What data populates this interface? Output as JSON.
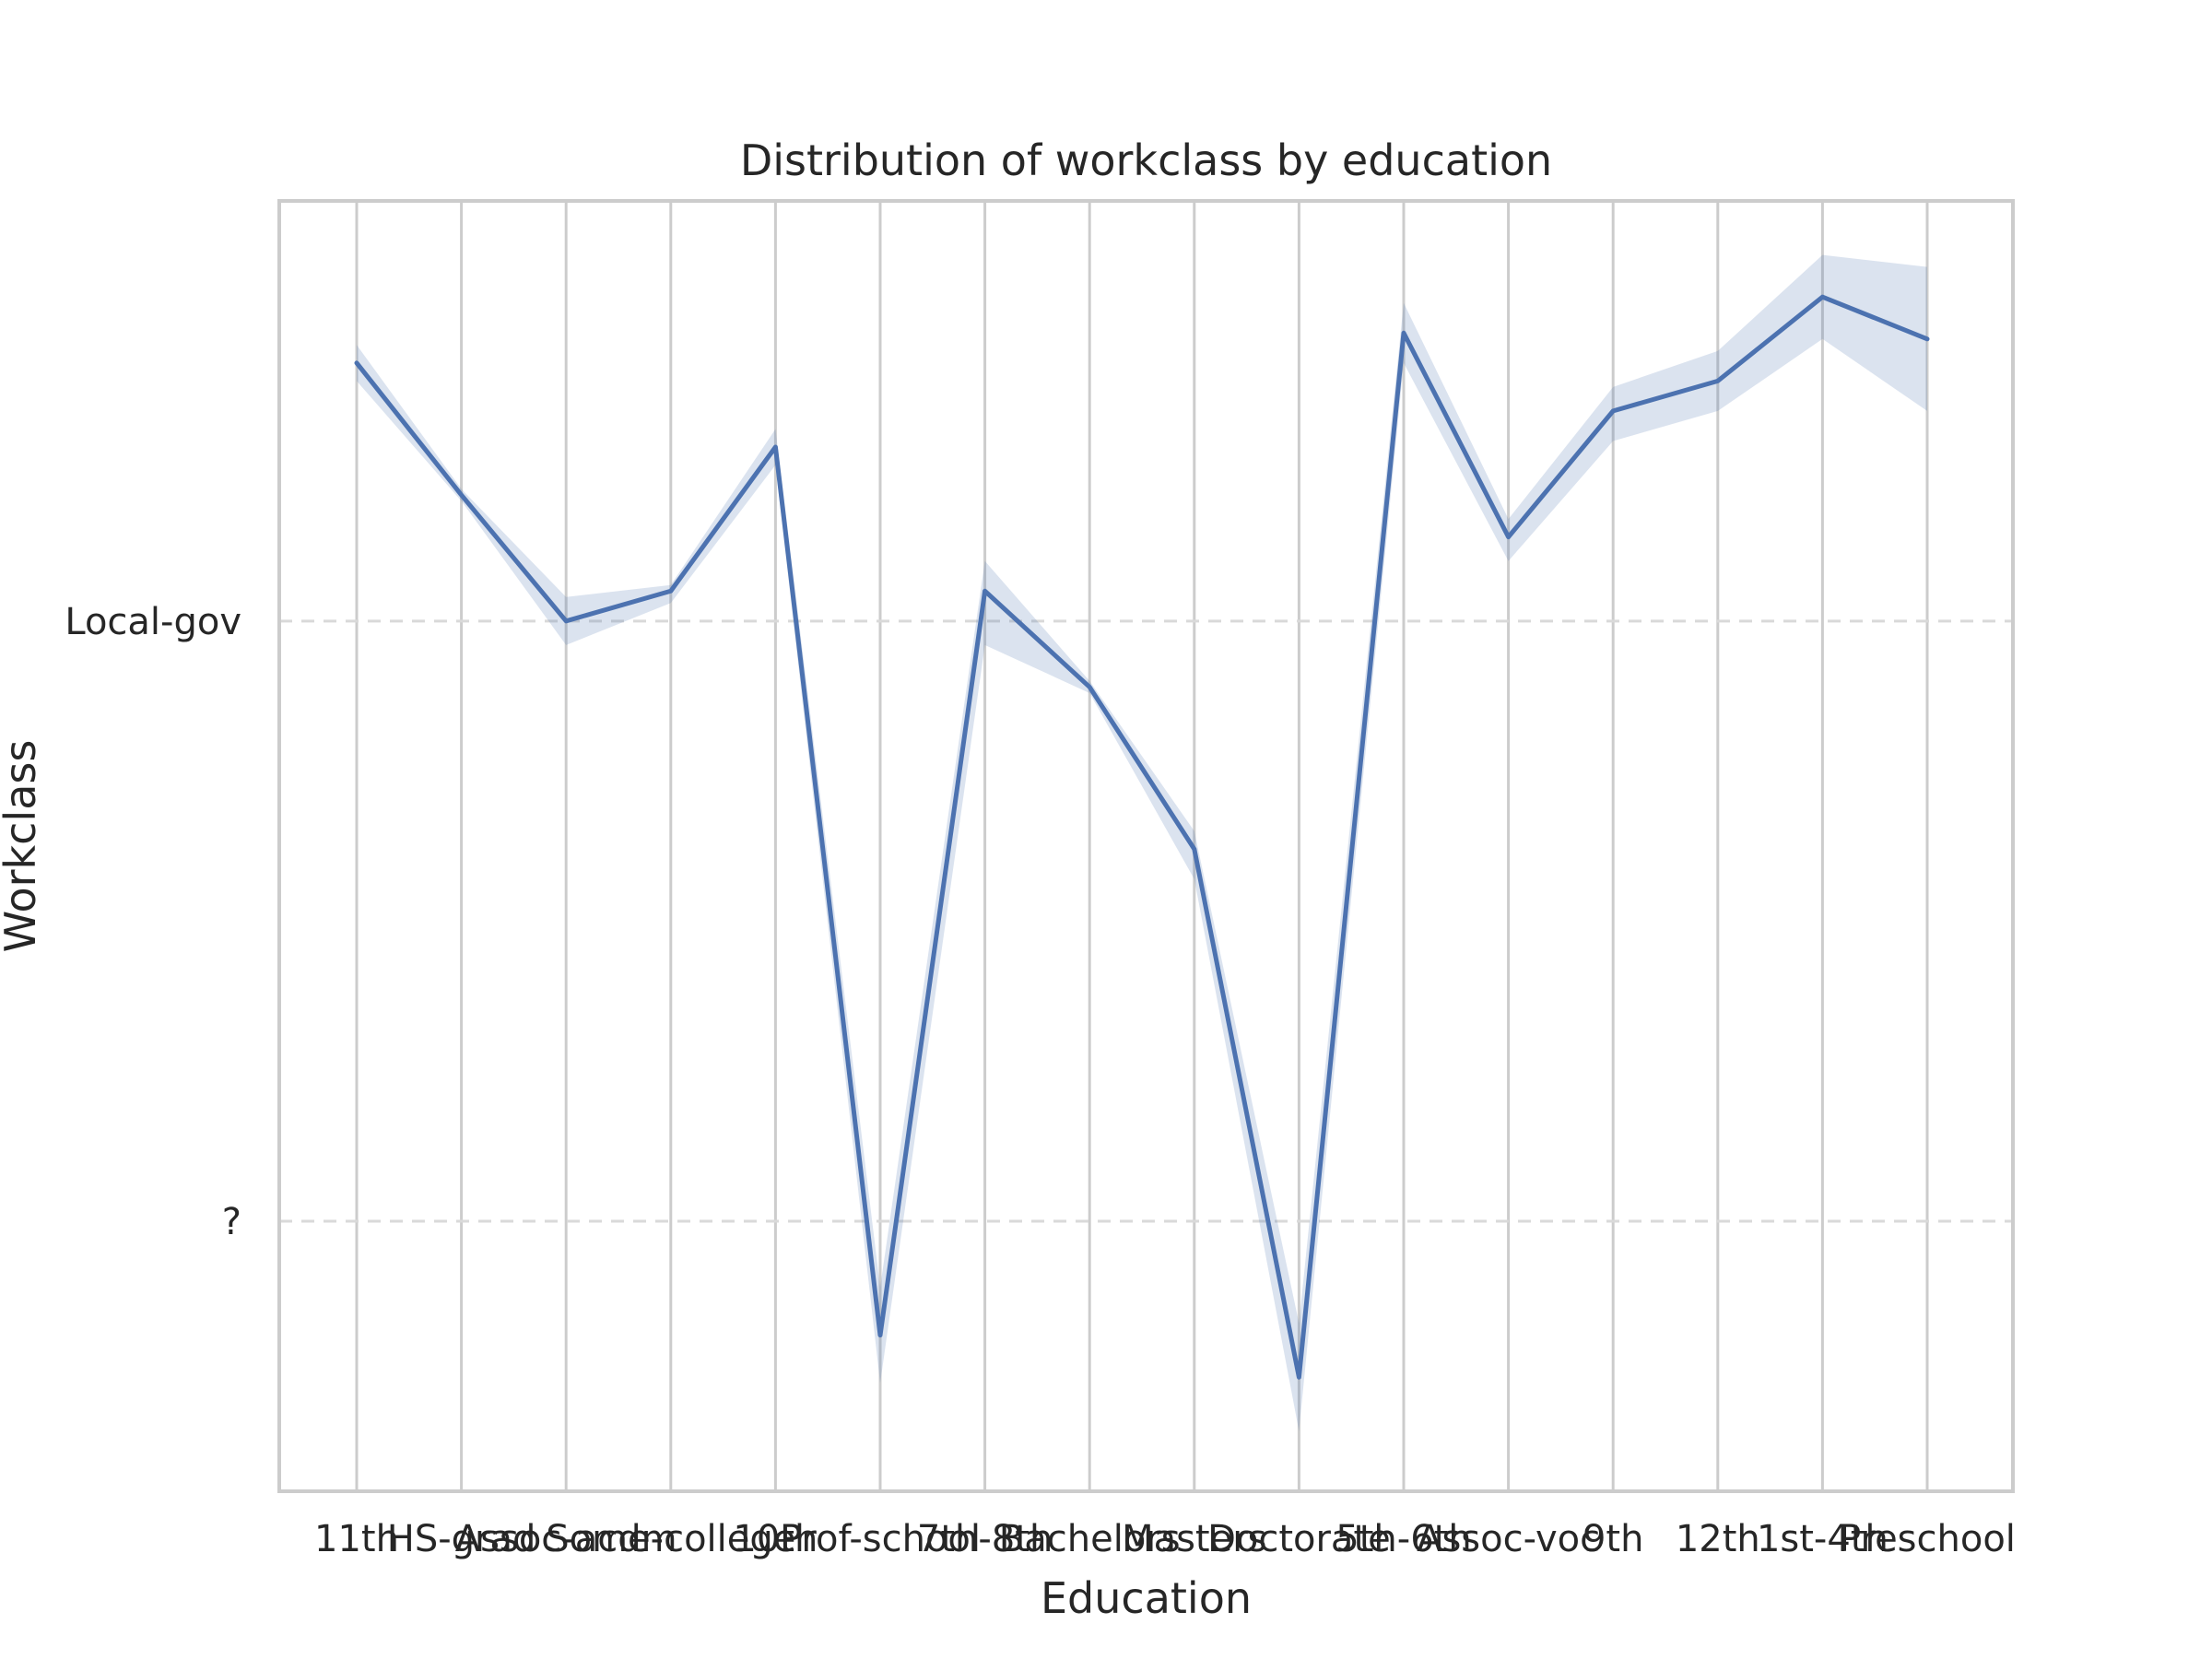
{
  "chart_data": {
    "type": "line",
    "title": "Distribution of workclass by education",
    "xlabel": "Education",
    "ylabel": "Workclass",
    "categories": [
      "11th",
      "HS-grad",
      "Assoc-acdm",
      "Some-college",
      "10th",
      "Prof-school",
      "7th-8th",
      "Bachelors",
      "Masters",
      "Doctorate",
      "5th-6th",
      "Assoc-voc",
      "9th",
      "12th",
      "1st-4th",
      "Preschool"
    ],
    "y_ticks": [
      {
        "label": "?",
        "value": 0
      },
      {
        "label": "Local-gov",
        "value": 1
      }
    ],
    "ylim": [
      -0.45,
      1.7
    ],
    "series": [
      {
        "values": [
          1.43,
          1.21,
          1.0,
          1.05,
          1.29,
          -0.19,
          1.05,
          0.89,
          0.62,
          -0.26,
          1.48,
          1.14,
          1.35,
          1.4,
          1.54,
          1.47
        ],
        "ci_lower": [
          1.4,
          1.2,
          0.96,
          1.03,
          1.26,
          -0.27,
          0.96,
          0.88,
          0.57,
          -0.35,
          1.43,
          1.1,
          1.3,
          1.35,
          1.47,
          1.35
        ],
        "ci_upper": [
          1.46,
          1.22,
          1.04,
          1.06,
          1.32,
          -0.11,
          1.1,
          0.9,
          0.65,
          -0.17,
          1.53,
          1.17,
          1.39,
          1.45,
          1.61,
          1.59
        ]
      }
    ],
    "grid": {
      "vertical": true,
      "horizontal": true,
      "horizontal_style": "dashed"
    },
    "colors": {
      "line": "#4c72b0",
      "band": "#4c72b0",
      "grid": "#cccccc",
      "frame": "#cccccc",
      "text": "#262626"
    }
  }
}
